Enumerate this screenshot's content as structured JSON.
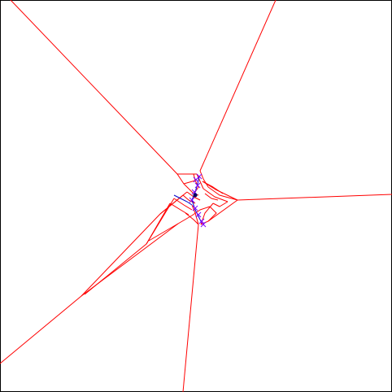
{
  "diagram": {
    "colors": {
      "background": "#ffffff",
      "frame": "#000000",
      "edges": "#ff0000",
      "path": "#0000cc",
      "path_markers": "#7f00ff",
      "node": "#000066"
    },
    "edge_count": 38,
    "path_marker_count": 9,
    "node_count": 1
  }
}
